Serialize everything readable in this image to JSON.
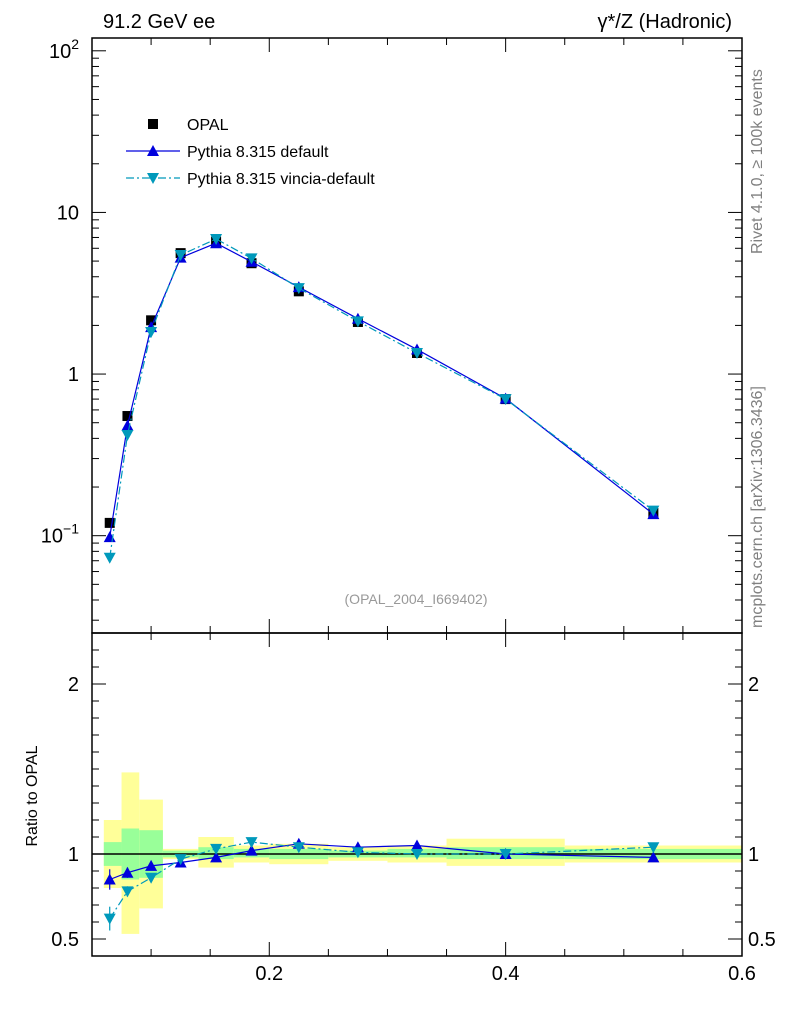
{
  "header": {
    "left_title": "91.2 GeV ee",
    "right_title": "γ*/Z (Hadronic)"
  },
  "side_labels": {
    "rivet": "Rivet 4.1.0, ≥ 100k events",
    "mcplots": "mcplots.cern.ch [arXiv:1306.3436]"
  },
  "analysis_id": "(OPAL_2004_I669402)",
  "chart_data": [
    {
      "type": "scatter",
      "panel": "main",
      "yscale": "log",
      "xlim": [
        0.05,
        0.6
      ],
      "ylim": [
        0.025,
        120
      ],
      "yticks": [
        {
          "value": 0.1,
          "base": "10",
          "exp": "−1"
        },
        {
          "value": 1,
          "base": "1",
          "exp": ""
        },
        {
          "value": 10,
          "base": "10",
          "exp": ""
        },
        {
          "value": 100,
          "base": "10",
          "exp": "2"
        }
      ],
      "legend_position": "top-left",
      "series": [
        {
          "name": "OPAL",
          "color": "#000000",
          "marker": "square",
          "x": [
            0.065,
            0.08,
            0.1,
            0.125,
            0.155,
            0.185,
            0.225,
            0.275,
            0.325,
            0.4,
            0.525
          ],
          "y": [
            0.12,
            0.55,
            2.15,
            5.6,
            6.6,
            4.85,
            3.25,
            2.1,
            1.35,
            0.7,
            0.138
          ]
        },
        {
          "name": "Pythia 8.315 default",
          "color": "#0000dd",
          "marker": "triangle-up",
          "line": "solid",
          "x": [
            0.065,
            0.08,
            0.1,
            0.125,
            0.155,
            0.185,
            0.225,
            0.275,
            0.325,
            0.4,
            0.525
          ],
          "y": [
            0.098,
            0.48,
            1.95,
            5.25,
            6.45,
            4.95,
            3.45,
            2.2,
            1.42,
            0.705,
            0.136
          ]
        },
        {
          "name": "Pythia 8.315 vincia-default",
          "color": "#0099bb",
          "marker": "triangle-down",
          "line": "dash-dot",
          "x": [
            0.065,
            0.08,
            0.1,
            0.125,
            0.155,
            0.185,
            0.225,
            0.275,
            0.325,
            0.4,
            0.525
          ],
          "y": [
            0.073,
            0.42,
            1.82,
            5.45,
            6.85,
            5.2,
            3.4,
            2.12,
            1.35,
            0.7,
            0.143
          ]
        }
      ]
    },
    {
      "type": "line",
      "panel": "ratio",
      "xlabel": "",
      "ylabel": "Ratio to OPAL",
      "xlim": [
        0.05,
        0.6
      ],
      "ylim": [
        0.4,
        2.3
      ],
      "yticks": [
        0.5,
        1,
        2
      ],
      "ytick_labels": [
        "0.5",
        "1",
        "2"
      ],
      "xticks": [
        0.2,
        0.4,
        0.6
      ],
      "xtick_labels": [
        "0.2",
        "0.4",
        "0.6"
      ],
      "uncertainty_bands": {
        "bin_edges": [
          0.06,
          0.075,
          0.09,
          0.11,
          0.14,
          0.17,
          0.2,
          0.25,
          0.3,
          0.35,
          0.45,
          0.6
        ],
        "stat_color": "#99ff99",
        "total_color": "#ffff99",
        "stat_low": [
          0.93,
          0.85,
          0.86,
          0.98,
          0.97,
          0.98,
          0.97,
          0.98,
          0.98,
          0.97,
          0.97
        ],
        "stat_high": [
          1.07,
          1.15,
          1.14,
          1.02,
          1.04,
          1.03,
          1.03,
          1.02,
          1.03,
          1.04,
          1.03
        ],
        "total_low": [
          0.8,
          0.53,
          0.68,
          0.97,
          0.92,
          0.95,
          0.94,
          0.96,
          0.95,
          0.93,
          0.95
        ],
        "total_high": [
          1.2,
          1.48,
          1.32,
          1.03,
          1.1,
          1.05,
          1.06,
          1.04,
          1.05,
          1.09,
          1.05
        ]
      },
      "series": [
        {
          "name": "Pythia 8.315 default",
          "color": "#0000dd",
          "x": [
            0.065,
            0.08,
            0.1,
            0.125,
            0.155,
            0.185,
            0.225,
            0.275,
            0.325,
            0.4,
            0.525
          ],
          "y": [
            0.85,
            0.89,
            0.93,
            0.95,
            0.98,
            1.02,
            1.06,
            1.04,
            1.05,
            1.0,
            0.98
          ],
          "err": [
            0.06,
            0.03,
            0.02,
            0.01,
            0.01,
            0.01,
            0.01,
            0.01,
            0.01,
            0.01,
            0.01
          ]
        },
        {
          "name": "Pythia 8.315 vincia-default",
          "color": "#0099bb",
          "x": [
            0.065,
            0.08,
            0.1,
            0.125,
            0.155,
            0.185,
            0.225,
            0.275,
            0.325,
            0.4,
            0.525
          ],
          "y": [
            0.62,
            0.78,
            0.86,
            0.97,
            1.03,
            1.07,
            1.04,
            1.01,
            1.0,
            1.0,
            1.04
          ],
          "err": [
            0.07,
            0.03,
            0.02,
            0.01,
            0.01,
            0.01,
            0.01,
            0.01,
            0.01,
            0.01,
            0.01
          ]
        }
      ]
    }
  ]
}
